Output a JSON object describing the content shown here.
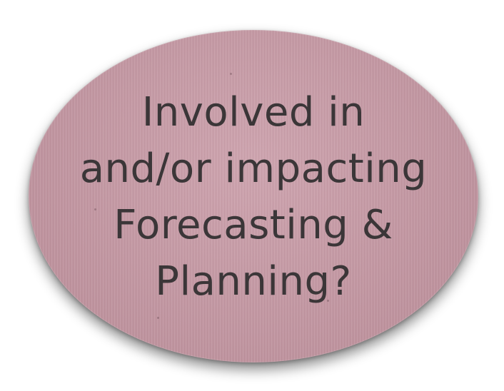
{
  "badge": {
    "lines": [
      "Involved in",
      "and/or impacting",
      "Forecasting &",
      "Planning?"
    ],
    "fill_color": "#c99aa6",
    "text_color": "#3b3638"
  }
}
